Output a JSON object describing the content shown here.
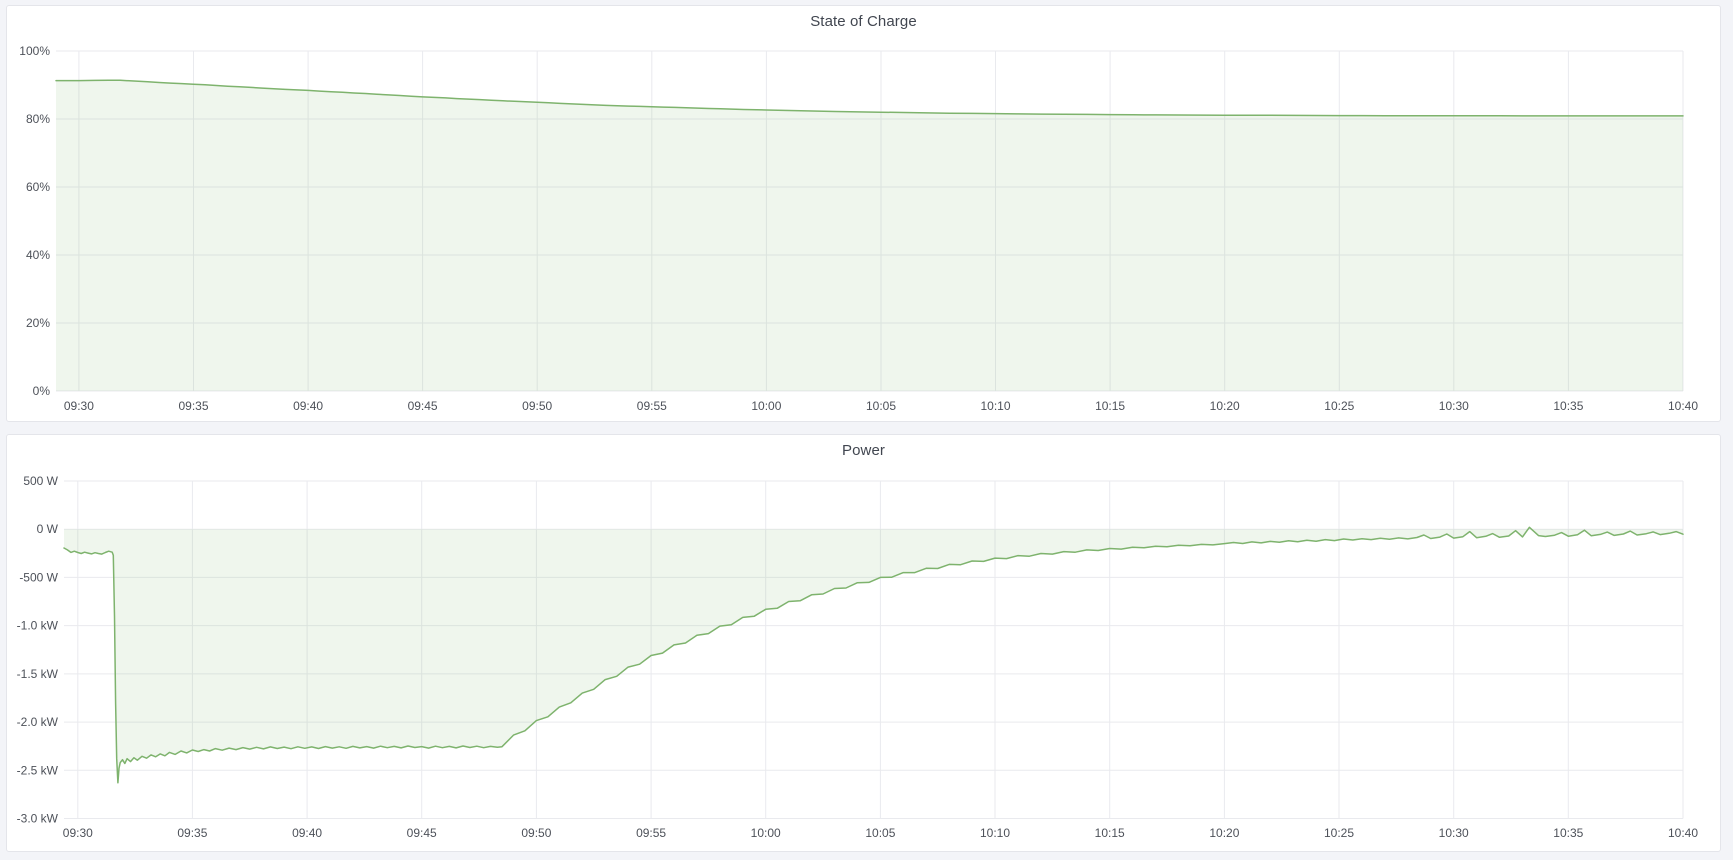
{
  "page": {
    "background_color": "#f3f4f8",
    "panel_background": "#ffffff",
    "accent_green": "#7eb36d",
    "grid_color": "#e9eaee",
    "text_color": "#4d5159"
  },
  "chart_data": [
    {
      "type": "area",
      "title": "State of Charge",
      "unit": "%",
      "ylim": [
        0,
        100
      ],
      "x_range_minutes": [
        -1,
        70
      ],
      "baseline": 0,
      "grid": true,
      "legend": "none",
      "line_color": "#7eb36d",
      "fill_color": "rgba(126,179,109,0.12)",
      "y_ticks": [
        {
          "v": 100,
          "label": "100%"
        },
        {
          "v": 80,
          "label": "80%"
        },
        {
          "v": 60,
          "label": "60%"
        },
        {
          "v": 40,
          "label": "40%"
        },
        {
          "v": 20,
          "label": "20%"
        },
        {
          "v": 0,
          "label": "0%"
        }
      ],
      "x_ticks": [
        {
          "t": 0,
          "label": "09:30"
        },
        {
          "t": 5,
          "label": "09:35"
        },
        {
          "t": 10,
          "label": "09:40"
        },
        {
          "t": 15,
          "label": "09:45"
        },
        {
          "t": 20,
          "label": "09:50"
        },
        {
          "t": 25,
          "label": "09:55"
        },
        {
          "t": 30,
          "label": "10:00"
        },
        {
          "t": 35,
          "label": "10:05"
        },
        {
          "t": 40,
          "label": "10:10"
        },
        {
          "t": 45,
          "label": "10:15"
        },
        {
          "t": 50,
          "label": "10:20"
        },
        {
          "t": 55,
          "label": "10:25"
        },
        {
          "t": 60,
          "label": "10:30"
        },
        {
          "t": 65,
          "label": "10:35"
        },
        {
          "t": 70,
          "label": "10:40"
        }
      ],
      "points": [
        [
          -1,
          91.3
        ],
        [
          0,
          91.3
        ],
        [
          0.7,
          91.35
        ],
        [
          1.3,
          91.4
        ],
        [
          1.8,
          91.38
        ],
        [
          2.2,
          91.25
        ],
        [
          2.6,
          91.1
        ],
        [
          3,
          90.95
        ],
        [
          3.5,
          90.75
        ],
        [
          4,
          90.55
        ],
        [
          4.5,
          90.4
        ],
        [
          5,
          90.25
        ],
        [
          5.5,
          90.05
        ],
        [
          6,
          89.85
        ],
        [
          6.5,
          89.65
        ],
        [
          7,
          89.5
        ],
        [
          7.5,
          89.3
        ],
        [
          8,
          89.1
        ],
        [
          8.5,
          88.9
        ],
        [
          9,
          88.7
        ],
        [
          9.5,
          88.55
        ],
        [
          10,
          88.4
        ],
        [
          10.5,
          88.2
        ],
        [
          11,
          88.0
        ],
        [
          11.5,
          87.85
        ],
        [
          12,
          87.65
        ],
        [
          12.5,
          87.5
        ],
        [
          13,
          87.3
        ],
        [
          13.5,
          87.1
        ],
        [
          14,
          86.9
        ],
        [
          14.5,
          86.7
        ],
        [
          15,
          86.5
        ],
        [
          15.5,
          86.35
        ],
        [
          16,
          86.2
        ],
        [
          16.5,
          86.0
        ],
        [
          17,
          85.85
        ],
        [
          17.5,
          85.7
        ],
        [
          18,
          85.5
        ],
        [
          18.5,
          85.35
        ],
        [
          19,
          85.2
        ],
        [
          19.5,
          85.05
        ],
        [
          20,
          84.9
        ],
        [
          20.5,
          84.75
        ],
        [
          21,
          84.6
        ],
        [
          21.5,
          84.45
        ],
        [
          22,
          84.3
        ],
        [
          22.5,
          84.15
        ],
        [
          23,
          84.0
        ],
        [
          23.5,
          83.9
        ],
        [
          24,
          83.8
        ],
        [
          24.5,
          83.7
        ],
        [
          25,
          83.6
        ],
        [
          25.5,
          83.5
        ],
        [
          26,
          83.4
        ],
        [
          26.5,
          83.3
        ],
        [
          27,
          83.2
        ],
        [
          27.5,
          83.1
        ],
        [
          28,
          83.0
        ],
        [
          28.5,
          82.9
        ],
        [
          29,
          82.8
        ],
        [
          30,
          82.65
        ],
        [
          31,
          82.5
        ],
        [
          32,
          82.35
        ],
        [
          33,
          82.2
        ],
        [
          34,
          82.1
        ],
        [
          35,
          82.0
        ],
        [
          36,
          81.9
        ],
        [
          37,
          81.8
        ],
        [
          38,
          81.7
        ],
        [
          39,
          81.65
        ],
        [
          40,
          81.6
        ],
        [
          41,
          81.5
        ],
        [
          42,
          81.45
        ],
        [
          43,
          81.4
        ],
        [
          44,
          81.35
        ],
        [
          45,
          81.3
        ],
        [
          46,
          81.25
        ],
        [
          47,
          81.2
        ],
        [
          48,
          81.18
        ],
        [
          49,
          81.15
        ],
        [
          50,
          81.12
        ],
        [
          51,
          81.1
        ],
        [
          52,
          81.08
        ],
        [
          53,
          81.05
        ],
        [
          54,
          81.03
        ],
        [
          55,
          81.0
        ],
        [
          56,
          81.0
        ],
        [
          57,
          80.98
        ],
        [
          58,
          80.97
        ],
        [
          59,
          80.96
        ],
        [
          60,
          80.95
        ],
        [
          61,
          80.94
        ],
        [
          62,
          80.93
        ],
        [
          63,
          80.92
        ],
        [
          64,
          80.92
        ],
        [
          65,
          80.91
        ],
        [
          66,
          80.9
        ],
        [
          67,
          80.9
        ],
        [
          68,
          80.9
        ],
        [
          69,
          80.9
        ],
        [
          70,
          80.9
        ]
      ]
    },
    {
      "type": "area",
      "title": "Power",
      "unit": "W",
      "ylim": [
        -3000,
        500
      ],
      "x_range_minutes": [
        -0.6,
        70
      ],
      "baseline": 0,
      "grid": true,
      "legend": "none",
      "line_color": "#7eb36d",
      "fill_color": "rgba(126,179,109,0.12)",
      "y_ticks": [
        {
          "v": 500,
          "label": "500 W"
        },
        {
          "v": 0,
          "label": "0 W"
        },
        {
          "v": -500,
          "label": "-500 W"
        },
        {
          "v": -1000,
          "label": "-1.0 kW"
        },
        {
          "v": -1500,
          "label": "-1.5 kW"
        },
        {
          "v": -2000,
          "label": "-2.0 kW"
        },
        {
          "v": -2500,
          "label": "-2.5 kW"
        },
        {
          "v": -3000,
          "label": "-3.0 kW"
        }
      ],
      "x_ticks": [
        {
          "t": 0,
          "label": "09:30"
        },
        {
          "t": 5,
          "label": "09:35"
        },
        {
          "t": 10,
          "label": "09:40"
        },
        {
          "t": 15,
          "label": "09:45"
        },
        {
          "t": 20,
          "label": "09:50"
        },
        {
          "t": 25,
          "label": "09:55"
        },
        {
          "t": 30,
          "label": "10:00"
        },
        {
          "t": 35,
          "label": "10:05"
        },
        {
          "t": 40,
          "label": "10:10"
        },
        {
          "t": 45,
          "label": "10:15"
        },
        {
          "t": 50,
          "label": "10:20"
        },
        {
          "t": 55,
          "label": "10:25"
        },
        {
          "t": 60,
          "label": "10:30"
        },
        {
          "t": 65,
          "label": "10:35"
        },
        {
          "t": 70,
          "label": "10:40"
        }
      ],
      "points": [
        [
          -0.6,
          -195
        ],
        [
          -0.45,
          -215
        ],
        [
          -0.3,
          -240
        ],
        [
          -0.15,
          -228
        ],
        [
          0,
          -242
        ],
        [
          0.15,
          -252
        ],
        [
          0.3,
          -238
        ],
        [
          0.45,
          -248
        ],
        [
          0.6,
          -256
        ],
        [
          0.75,
          -244
        ],
        [
          0.9,
          -252
        ],
        [
          1.05,
          -258
        ],
        [
          1.2,
          -242
        ],
        [
          1.35,
          -228
        ],
        [
          1.5,
          -238
        ],
        [
          1.55,
          -270
        ],
        [
          1.6,
          -900
        ],
        [
          1.65,
          -1800
        ],
        [
          1.7,
          -2380
        ],
        [
          1.75,
          -2630
        ],
        [
          1.8,
          -2480
        ],
        [
          1.85,
          -2420
        ],
        [
          1.95,
          -2390
        ],
        [
          2.05,
          -2430
        ],
        [
          2.15,
          -2380
        ],
        [
          2.3,
          -2410
        ],
        [
          2.45,
          -2370
        ],
        [
          2.6,
          -2395
        ],
        [
          2.8,
          -2355
        ],
        [
          3.0,
          -2375
        ],
        [
          3.2,
          -2340
        ],
        [
          3.4,
          -2360
        ],
        [
          3.6,
          -2330
        ],
        [
          3.8,
          -2350
        ],
        [
          4.0,
          -2315
        ],
        [
          4.25,
          -2335
        ],
        [
          4.5,
          -2300
        ],
        [
          4.75,
          -2320
        ],
        [
          5.0,
          -2290
        ],
        [
          5.25,
          -2305
        ],
        [
          5.5,
          -2285
        ],
        [
          5.75,
          -2300
        ],
        [
          6.0,
          -2275
        ],
        [
          6.3,
          -2292
        ],
        [
          6.6,
          -2270
        ],
        [
          6.9,
          -2285
        ],
        [
          7.2,
          -2265
        ],
        [
          7.5,
          -2280
        ],
        [
          7.8,
          -2262
        ],
        [
          8.1,
          -2278
        ],
        [
          8.4,
          -2258
        ],
        [
          8.7,
          -2274
        ],
        [
          9.0,
          -2260
        ],
        [
          9.3,
          -2276
        ],
        [
          9.6,
          -2256
        ],
        [
          9.9,
          -2272
        ],
        [
          10.2,
          -2258
        ],
        [
          10.5,
          -2274
        ],
        [
          10.8,
          -2254
        ],
        [
          11.1,
          -2270
        ],
        [
          11.4,
          -2256
        ],
        [
          11.7,
          -2272
        ],
        [
          12.0,
          -2252
        ],
        [
          12.3,
          -2268
        ],
        [
          12.6,
          -2254
        ],
        [
          12.9,
          -2270
        ],
        [
          13.2,
          -2250
        ],
        [
          13.5,
          -2266
        ],
        [
          13.8,
          -2252
        ],
        [
          14.1,
          -2268
        ],
        [
          14.4,
          -2248
        ],
        [
          14.7,
          -2264
        ],
        [
          15.0,
          -2254
        ],
        [
          15.3,
          -2270
        ],
        [
          15.6,
          -2250
        ],
        [
          15.9,
          -2266
        ],
        [
          16.2,
          -2252
        ],
        [
          16.5,
          -2268
        ],
        [
          16.8,
          -2248
        ],
        [
          17.1,
          -2264
        ],
        [
          17.4,
          -2250
        ],
        [
          17.7,
          -2266
        ],
        [
          18.0,
          -2252
        ],
        [
          18.3,
          -2262
        ],
        [
          18.5,
          -2255
        ],
        [
          19,
          -2135
        ],
        [
          19.5,
          -2090
        ],
        [
          20,
          -1985
        ],
        [
          20.5,
          -1945
        ],
        [
          21,
          -1845
        ],
        [
          21.5,
          -1800
        ],
        [
          22,
          -1700
        ],
        [
          22.5,
          -1660
        ],
        [
          23,
          -1560
        ],
        [
          23.5,
          -1525
        ],
        [
          24,
          -1430
        ],
        [
          24.5,
          -1400
        ],
        [
          25,
          -1310
        ],
        [
          25.5,
          -1285
        ],
        [
          26,
          -1200
        ],
        [
          26.5,
          -1180
        ],
        [
          27,
          -1100
        ],
        [
          27.5,
          -1082
        ],
        [
          28,
          -1005
        ],
        [
          28.5,
          -990
        ],
        [
          29,
          -915
        ],
        [
          29.5,
          -902
        ],
        [
          30,
          -830
        ],
        [
          30.5,
          -820
        ],
        [
          31,
          -750
        ],
        [
          31.5,
          -742
        ],
        [
          32,
          -680
        ],
        [
          32.5,
          -672
        ],
        [
          33,
          -615
        ],
        [
          33.5,
          -610
        ],
        [
          34,
          -555
        ],
        [
          34.5,
          -552
        ],
        [
          35,
          -500
        ],
        [
          35.5,
          -498
        ],
        [
          36,
          -450
        ],
        [
          36.5,
          -450
        ],
        [
          37,
          -405
        ],
        [
          37.5,
          -407
        ],
        [
          38,
          -365
        ],
        [
          38.5,
          -368
        ],
        [
          39,
          -330
        ],
        [
          39.5,
          -334
        ],
        [
          40,
          -300
        ],
        [
          40.5,
          -305
        ],
        [
          41,
          -274
        ],
        [
          41.5,
          -280
        ],
        [
          42,
          -252
        ],
        [
          42.5,
          -258
        ],
        [
          43,
          -232
        ],
        [
          43.5,
          -238
        ],
        [
          44,
          -215
        ],
        [
          44.5,
          -221
        ],
        [
          45,
          -200
        ],
        [
          45.5,
          -206
        ],
        [
          46,
          -187
        ],
        [
          46.5,
          -193
        ],
        [
          47,
          -176
        ],
        [
          47.5,
          -182
        ],
        [
          48,
          -166
        ],
        [
          48.5,
          -172
        ],
        [
          49,
          -157
        ],
        [
          49.5,
          -163
        ],
        [
          50,
          -149
        ],
        [
          50.4,
          -138
        ],
        [
          50.8,
          -148
        ],
        [
          51.2,
          -132
        ],
        [
          51.6,
          -142
        ],
        [
          52,
          -126
        ],
        [
          52.4,
          -136
        ],
        [
          52.8,
          -120
        ],
        [
          53.2,
          -130
        ],
        [
          53.6,
          -114
        ],
        [
          54,
          -124
        ],
        [
          54.4,
          -108
        ],
        [
          54.8,
          -118
        ],
        [
          55.2,
          -102
        ],
        [
          55.6,
          -112
        ],
        [
          56,
          -98
        ],
        [
          56.4,
          -108
        ],
        [
          56.8,
          -94
        ],
        [
          57.2,
          -104
        ],
        [
          57.6,
          -90
        ],
        [
          58,
          -100
        ],
        [
          58.4,
          -86
        ],
        [
          58.7,
          -60
        ],
        [
          59,
          -96
        ],
        [
          59.4,
          -82
        ],
        [
          59.7,
          -50
        ],
        [
          60,
          -92
        ],
        [
          60.4,
          -78
        ],
        [
          60.7,
          -25
        ],
        [
          61,
          -88
        ],
        [
          61.4,
          -74
        ],
        [
          61.7,
          -45
        ],
        [
          62,
          -84
        ],
        [
          62.4,
          -70
        ],
        [
          62.7,
          -15
        ],
        [
          63,
          -80
        ],
        [
          63.3,
          20
        ],
        [
          63.7,
          -66
        ],
        [
          64,
          -76
        ],
        [
          64.4,
          -62
        ],
        [
          64.7,
          -35
        ],
        [
          65,
          -72
        ],
        [
          65.4,
          -58
        ],
        [
          65.7,
          -10
        ],
        [
          66,
          -68
        ],
        [
          66.4,
          -54
        ],
        [
          66.7,
          -30
        ],
        [
          67,
          -64
        ],
        [
          67.4,
          -50
        ],
        [
          67.7,
          -20
        ],
        [
          68,
          -60
        ],
        [
          68.4,
          -46
        ],
        [
          68.7,
          -28
        ],
        [
          69,
          -56
        ],
        [
          69.4,
          -42
        ],
        [
          69.7,
          -25
        ],
        [
          70,
          -52
        ]
      ]
    }
  ]
}
